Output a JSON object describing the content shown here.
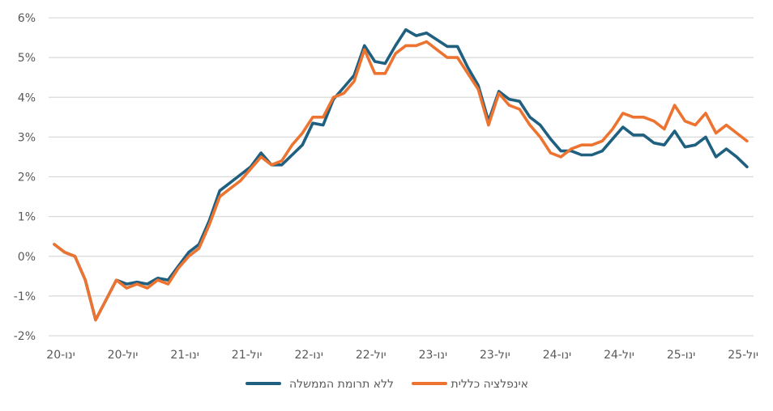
{
  "chart_data": {
    "type": "line",
    "title": "",
    "xlabel": "",
    "ylabel": "",
    "ylim": [
      -2,
      6
    ],
    "y_ticks": [
      -2,
      -1,
      0,
      1,
      2,
      3,
      4,
      5,
      6
    ],
    "y_tick_labels": [
      "-2%",
      "-1%",
      "0%",
      "1%",
      "2%",
      "3%",
      "4%",
      "5%",
      "6%"
    ],
    "x_start": "2020-01",
    "x_frequency": "monthly",
    "x_tick_labels": [
      "ינו-20",
      "יול-20",
      "ינו-21",
      "יול-21",
      "ינו-22",
      "יול-22",
      "ינו-23",
      "יול-23",
      "ינו-24",
      "יול-24",
      "ינו-25",
      "יול-25"
    ],
    "x_tick_every_months": 6,
    "grid": "horizontal",
    "legend_position": "bottom",
    "series": [
      {
        "name": "ללא תרומת הממשלה",
        "color": "#1f5f7f",
        "values": [
          0.3,
          0.1,
          0.0,
          -0.6,
          -1.6,
          -1.1,
          -0.6,
          -0.7,
          -0.65,
          -0.7,
          -0.55,
          -0.6,
          -0.25,
          0.1,
          0.3,
          0.9,
          1.65,
          1.85,
          2.05,
          2.25,
          2.6,
          2.3,
          2.3,
          2.55,
          2.8,
          3.35,
          3.3,
          3.95,
          4.25,
          4.55,
          5.3,
          4.9,
          4.85,
          5.3,
          5.7,
          5.55,
          5.62,
          5.45,
          5.28,
          5.28,
          4.75,
          4.3,
          3.4,
          4.15,
          3.95,
          3.9,
          3.5,
          3.3,
          2.95,
          2.65,
          2.65,
          2.55,
          2.55,
          2.65,
          2.95,
          3.25,
          3.05,
          3.05,
          2.85,
          2.8,
          3.15,
          2.75,
          2.8,
          3.0,
          2.5,
          2.7,
          2.5,
          2.25
        ]
      },
      {
        "name": "אינפלציה כללית",
        "color": "#ed7331",
        "values": [
          0.3,
          0.1,
          0.0,
          -0.6,
          -1.6,
          -1.1,
          -0.6,
          -0.8,
          -0.7,
          -0.8,
          -0.6,
          -0.7,
          -0.3,
          0.0,
          0.2,
          0.8,
          1.5,
          1.7,
          1.9,
          2.2,
          2.5,
          2.3,
          2.4,
          2.8,
          3.1,
          3.5,
          3.5,
          4.0,
          4.1,
          4.4,
          5.2,
          4.6,
          4.6,
          5.1,
          5.3,
          5.3,
          5.4,
          5.2,
          5.0,
          5.0,
          4.6,
          4.2,
          3.3,
          4.1,
          3.8,
          3.7,
          3.3,
          3.0,
          2.6,
          2.5,
          2.7,
          2.8,
          2.8,
          2.9,
          3.2,
          3.6,
          3.5,
          3.5,
          3.4,
          3.2,
          3.8,
          3.4,
          3.3,
          3.6,
          3.1,
          3.3,
          3.1,
          2.9
        ]
      }
    ]
  }
}
